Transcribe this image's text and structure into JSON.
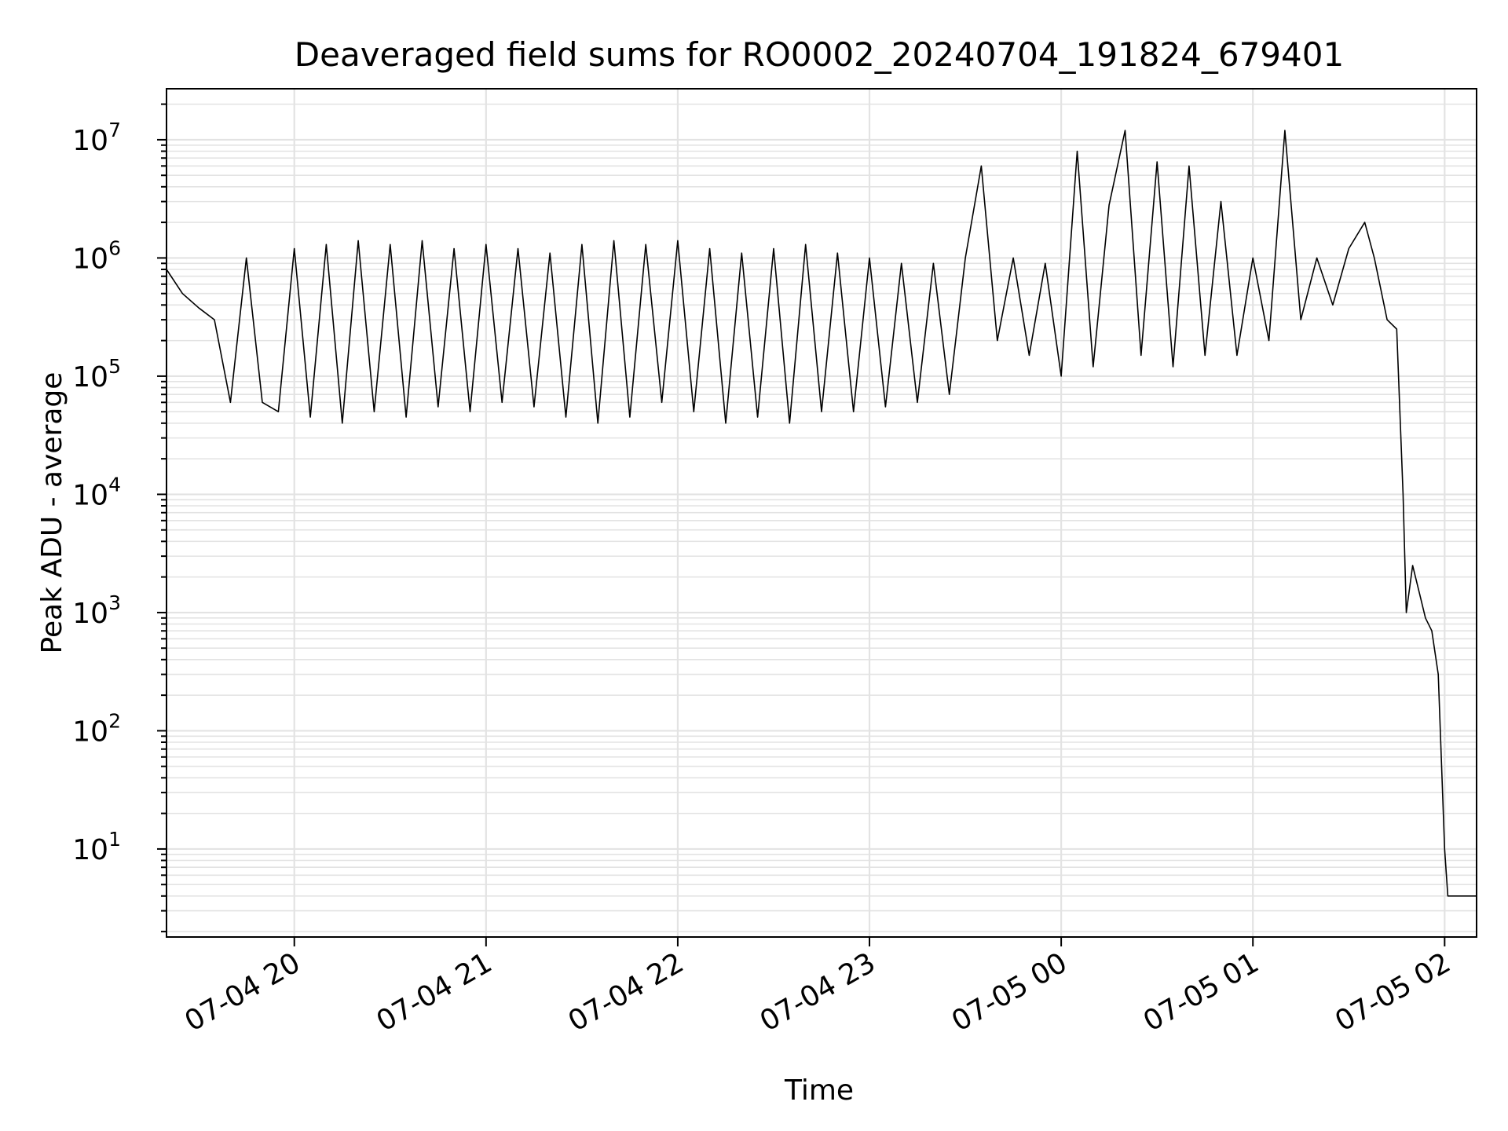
{
  "chart_data": {
    "type": "line",
    "title": "Deaveraged field sums for RO0002_20240704_191824_679401",
    "xlabel": "Time",
    "ylabel": "Peak ADU - average",
    "yscale": "log",
    "grid": true,
    "line_color": "#000000",
    "xlim": [
      "07-04 19:20",
      "07-05 02:10"
    ],
    "ylim": [
      1.8,
      27000000
    ],
    "x_ticks": [
      "07-04 20",
      "07-04 21",
      "07-04 22",
      "07-04 23",
      "07-05 00",
      "07-05 01",
      "07-05 02"
    ],
    "y_ticks": [
      {
        "base": "10",
        "exp": "1",
        "value": 10
      },
      {
        "base": "10",
        "exp": "2",
        "value": 100
      },
      {
        "base": "10",
        "exp": "3",
        "value": 1000
      },
      {
        "base": "10",
        "exp": "4",
        "value": 10000
      },
      {
        "base": "10",
        "exp": "5",
        "value": 100000
      },
      {
        "base": "10",
        "exp": "6",
        "value": 1000000
      },
      {
        "base": "10",
        "exp": "7",
        "value": 10000000
      }
    ],
    "series": [
      {
        "x": [
          "07-04 19:20",
          "07-04 19:25",
          "07-04 19:30",
          "07-04 19:35",
          "07-04 19:40",
          "07-04 19:45",
          "07-04 19:50",
          "07-04 19:55",
          "07-04 20:00",
          "07-04 20:05",
          "07-04 20:10",
          "07-04 20:15",
          "07-04 20:20",
          "07-04 20:25",
          "07-04 20:30",
          "07-04 20:35",
          "07-04 20:40",
          "07-04 20:45",
          "07-04 20:50",
          "07-04 20:55",
          "07-04 21:00",
          "07-04 21:05",
          "07-04 21:10",
          "07-04 21:15",
          "07-04 21:20",
          "07-04 21:25",
          "07-04 21:30",
          "07-04 21:35",
          "07-04 21:40",
          "07-04 21:45",
          "07-04 21:50",
          "07-04 21:55",
          "07-04 22:00",
          "07-04 22:05",
          "07-04 22:10",
          "07-04 22:15",
          "07-04 22:20",
          "07-04 22:25",
          "07-04 22:30",
          "07-04 22:35",
          "07-04 22:40",
          "07-04 22:45",
          "07-04 22:50",
          "07-04 22:55",
          "07-04 23:00",
          "07-04 23:05",
          "07-04 23:10",
          "07-04 23:15",
          "07-04 23:20",
          "07-04 23:25",
          "07-04 23:30",
          "07-04 23:35",
          "07-04 23:40",
          "07-04 23:45",
          "07-04 23:50",
          "07-04 23:55",
          "07-05 00:00",
          "07-05 00:05",
          "07-05 00:10",
          "07-05 00:15",
          "07-05 00:20",
          "07-05 00:25",
          "07-05 00:30",
          "07-05 00:35",
          "07-05 00:40",
          "07-05 00:45",
          "07-05 00:50",
          "07-05 00:55",
          "07-05 01:00",
          "07-05 01:05",
          "07-05 01:10",
          "07-05 01:15",
          "07-05 01:20",
          "07-05 01:25",
          "07-05 01:30",
          "07-05 01:35",
          "07-05 01:38",
          "07-05 01:42",
          "07-05 01:45",
          "07-05 01:47",
          "07-05 01:48",
          "07-05 01:50",
          "07-05 01:52",
          "07-05 01:54",
          "07-05 01:56",
          "07-05 01:58",
          "07-05 02:00",
          "07-05 02:01",
          "07-05 02:02",
          "07-05 02:04",
          "07-05 02:06",
          "07-05 02:08",
          "07-05 02:10"
        ],
        "y": [
          800000,
          500000,
          380000,
          300000,
          60000,
          1000000,
          60000,
          50000,
          1200000,
          45000,
          1300000,
          40000,
          1400000,
          50000,
          1300000,
          45000,
          1400000,
          55000,
          1200000,
          50000,
          1300000,
          60000,
          1200000,
          55000,
          1100000,
          45000,
          1300000,
          40000,
          1400000,
          45000,
          1300000,
          60000,
          1400000,
          50000,
          1200000,
          40000,
          1100000,
          45000,
          1200000,
          40000,
          1300000,
          50000,
          1100000,
          50000,
          1000000,
          55000,
          900000,
          60000,
          900000,
          70000,
          1000000,
          6000000,
          200000,
          1000000,
          150000,
          900000,
          100000,
          8000000,
          120000,
          2800000,
          12000000,
          150000,
          6500000,
          120000,
          6000000,
          150000,
          3000000,
          150000,
          1000000,
          200000,
          12000000,
          300000,
          1000000,
          400000,
          1200000,
          2000000,
          1000000,
          300000,
          250000,
          10000,
          1000,
          2500,
          1500,
          900,
          700,
          300,
          10,
          4,
          4,
          4,
          4,
          4,
          4
        ]
      }
    ]
  }
}
